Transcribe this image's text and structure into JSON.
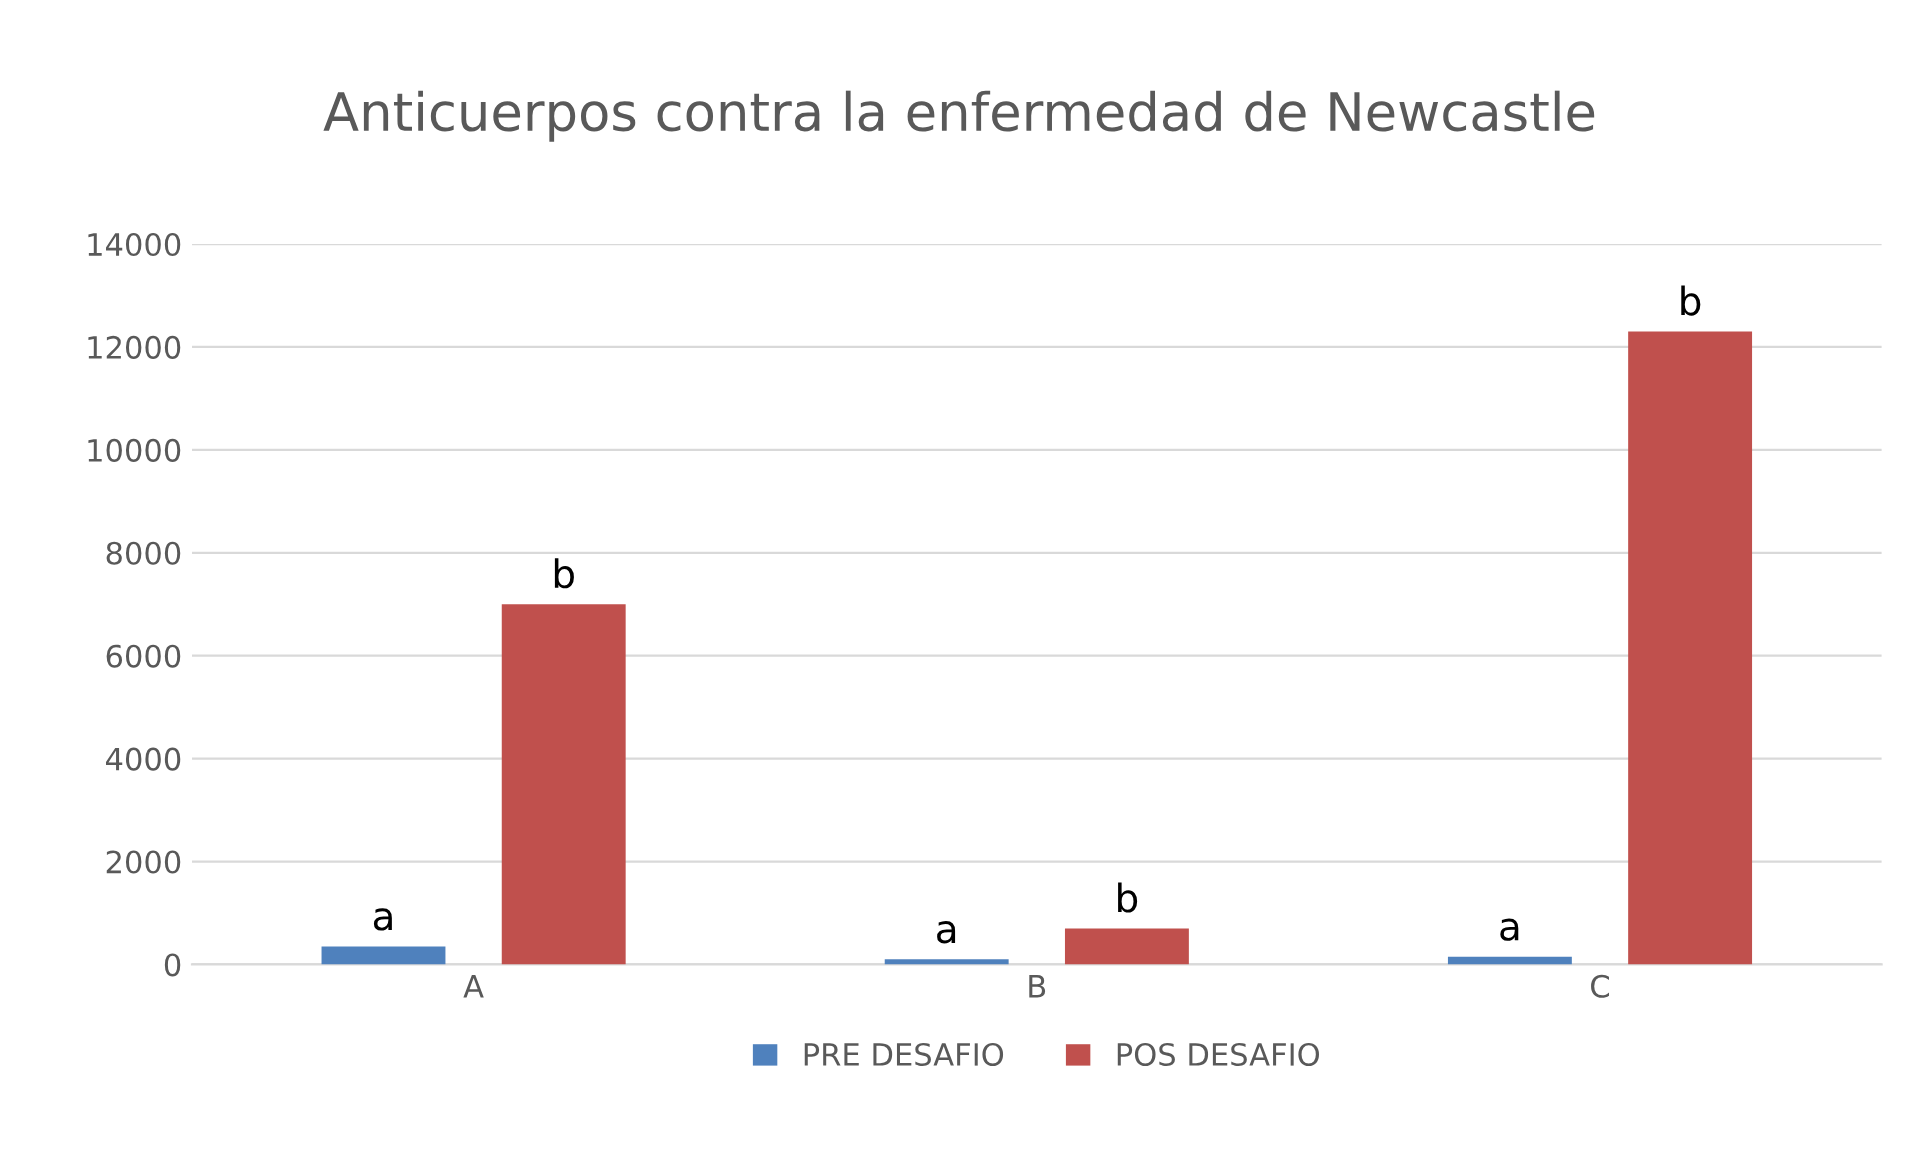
{
  "chart_data": {
    "type": "bar",
    "title": "Anticuerpos contra la enfermedad de Newcastle",
    "categories": [
      "A",
      "B",
      "C"
    ],
    "series": [
      {
        "name": "PRE DESAFIO",
        "color": "#4f81bd",
        "values": [
          350,
          100,
          150
        ],
        "value_labels": [
          "a",
          "a",
          "a"
        ]
      },
      {
        "name": "POS DESAFIO",
        "color": "#c0504d",
        "values": [
          7000,
          700,
          12300
        ],
        "value_labels": [
          "b",
          "b",
          "b"
        ]
      }
    ],
    "ylim": [
      0,
      14000
    ],
    "yticks": [
      0,
      2000,
      4000,
      6000,
      8000,
      10000,
      12000,
      14000
    ],
    "grid": "y",
    "legend": "bottom"
  }
}
